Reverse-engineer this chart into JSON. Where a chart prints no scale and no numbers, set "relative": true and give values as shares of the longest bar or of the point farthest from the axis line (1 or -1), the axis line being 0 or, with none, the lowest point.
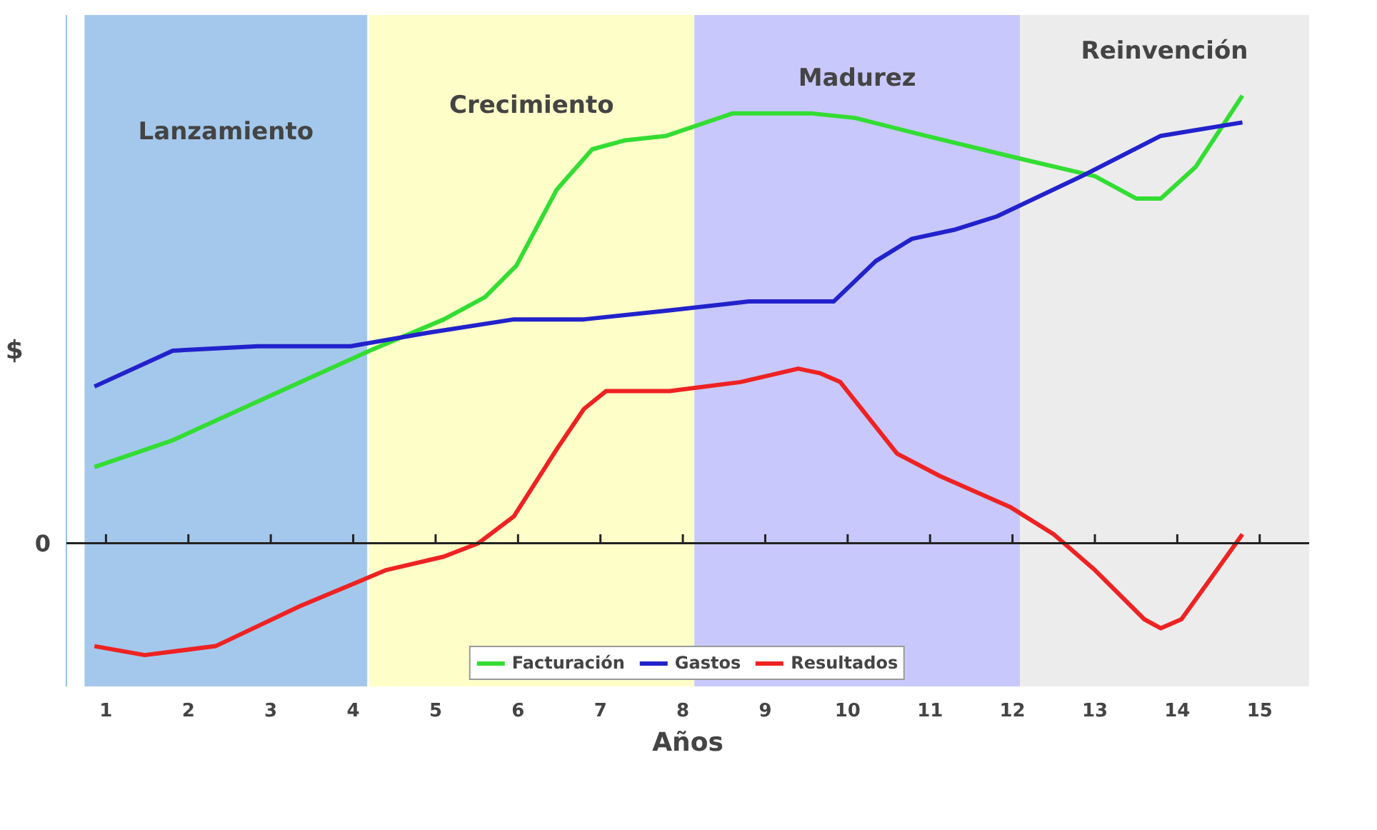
{
  "chart_data": {
    "type": "line",
    "relative": true,
    "xlabel": "Años",
    "ylabel": "$",
    "annotations": [
      "0"
    ],
    "xlim": [
      0.52,
      15.6
    ],
    "xticks": [
      1,
      2,
      3,
      4,
      5,
      6,
      7,
      8,
      9,
      10,
      11,
      12,
      13,
      14,
      15
    ],
    "legend": "bottom",
    "bands": [
      {
        "axis": "x",
        "from": 0.74,
        "to": 4.17,
        "label": "Lanzamiento",
        "color": "#a4c8ec"
      },
      {
        "axis": "x",
        "from": 4.19,
        "to": 8.14,
        "label": "Crecimiento",
        "color": "#fefec8"
      },
      {
        "axis": "x",
        "from": 8.14,
        "to": 12.09,
        "label": "Madurez",
        "color": "#c8c8fc"
      },
      {
        "axis": "x",
        "from": 12.09,
        "to": 15.6,
        "label": "Reinvención",
        "color": "#ececec"
      }
    ],
    "series": [
      {
        "name": "Facturación",
        "color": "#33dd33",
        "x": [
          0.86,
          1.81,
          3.0,
          4.2,
          5.1,
          5.6,
          5.98,
          6.47,
          6.9,
          7.3,
          7.8,
          8.6,
          9.57,
          10.09,
          10.95,
          12.07,
          13.0,
          13.5,
          13.8,
          14.22,
          14.79
        ],
        "values": [
          0.17,
          0.23,
          0.33,
          0.43,
          0.5,
          0.55,
          0.62,
          0.79,
          0.88,
          0.9,
          0.91,
          0.96,
          0.96,
          0.95,
          0.91,
          0.86,
          0.82,
          0.77,
          0.77,
          0.84,
          1.0
        ]
      },
      {
        "name": "Gastos",
        "color": "#2222cc",
        "x": [
          0.86,
          1.81,
          2.84,
          3.97,
          4.9,
          5.95,
          6.8,
          7.84,
          8.8,
          9.83,
          10.34,
          10.78,
          11.29,
          11.81,
          12.84,
          13.8,
          14.79
        ],
        "values": [
          0.35,
          0.43,
          0.44,
          0.44,
          0.47,
          0.5,
          0.5,
          0.52,
          0.54,
          0.54,
          0.63,
          0.68,
          0.7,
          0.73,
          0.82,
          0.91,
          0.94
        ]
      },
      {
        "name": "Resultados",
        "color": "#ee2222",
        "x": [
          0.86,
          1.47,
          2.33,
          3.36,
          4.4,
          5.1,
          5.52,
          5.95,
          6.47,
          6.8,
          7.07,
          7.84,
          8.7,
          9.4,
          9.66,
          9.91,
          10.6,
          11.12,
          11.98,
          12.5,
          13.0,
          13.6,
          13.8,
          14.05,
          14.48,
          14.79
        ],
        "values": [
          -0.23,
          -0.25,
          -0.23,
          -0.14,
          -0.06,
          -0.03,
          0.0,
          0.06,
          0.21,
          0.3,
          0.34,
          0.34,
          0.36,
          0.39,
          0.38,
          0.36,
          0.2,
          0.15,
          0.08,
          0.02,
          -0.06,
          -0.17,
          -0.19,
          -0.17,
          -0.06,
          0.02
        ]
      }
    ]
  }
}
